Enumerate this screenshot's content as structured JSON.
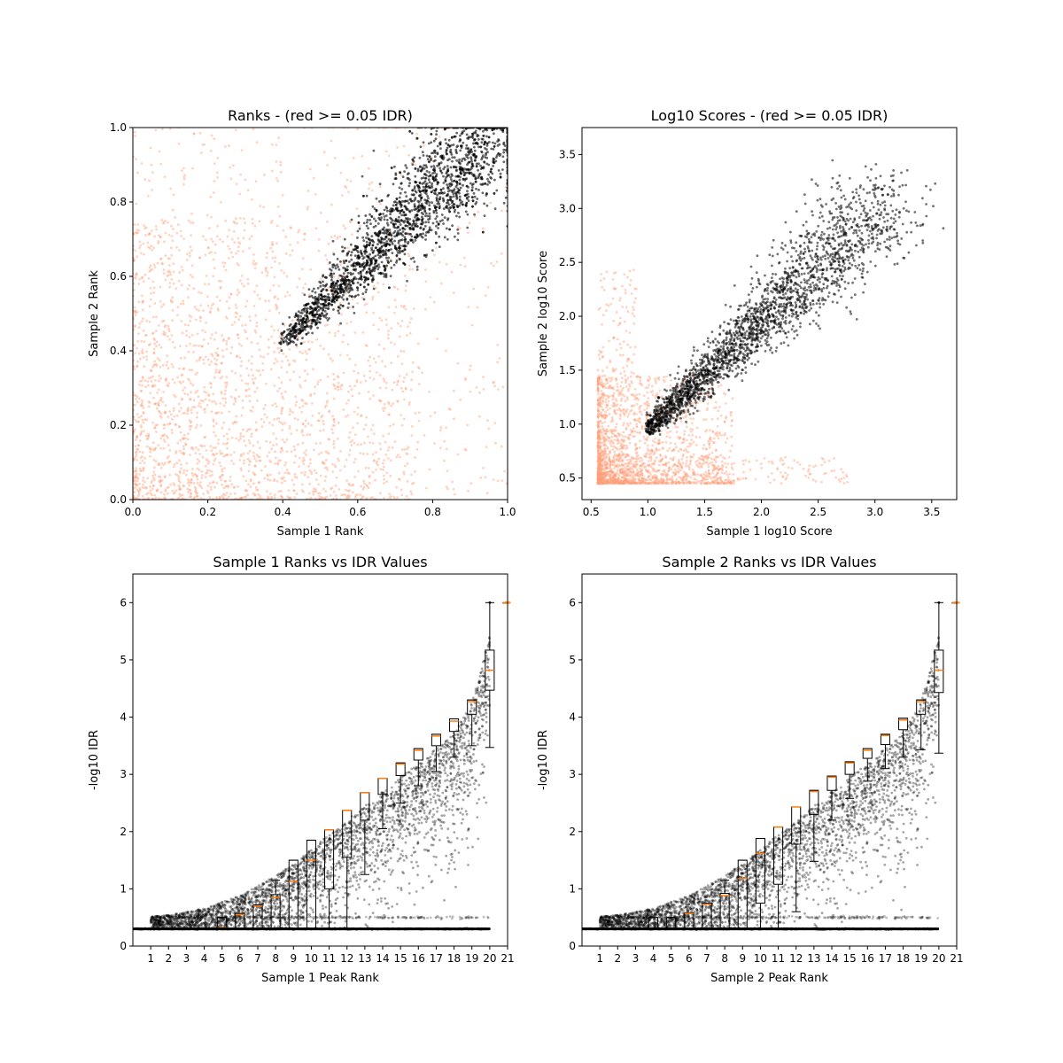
{
  "colors": {
    "pass": "#000000",
    "fail": "#ffa07a",
    "median": "#ff7f0e",
    "axes": "#000000"
  },
  "chart_data": [
    {
      "id": "ranks",
      "type": "scatter",
      "title": "Ranks - (red >= 0.05 IDR)",
      "xlabel": "Sample 1 Rank",
      "ylabel": "Sample 2 Rank",
      "xlim": [
        0,
        1
      ],
      "ylim": [
        0,
        1
      ],
      "xticks": [
        "0.0",
        "0.2",
        "0.4",
        "0.6",
        "0.8",
        "1.0"
      ],
      "yticks": [
        "0.0",
        "0.2",
        "0.4",
        "0.6",
        "0.8",
        "1.0"
      ],
      "grid": false,
      "series": [
        {
          "status": "fail",
          "color": "#ffa07a",
          "region": "lower-left",
          "description": "points with IDR >= 0.05"
        },
        {
          "status": "pass",
          "color": "#000000",
          "region": "diagonal band from (0.4, 0.39) to (1.0, 1.0)",
          "description": "points with IDR < 0.05"
        }
      ]
    },
    {
      "id": "scores",
      "type": "scatter",
      "title": "Log10 Scores - (red >= 0.05 IDR)",
      "xlabel": "Sample 1 log10 Score",
      "ylabel": "Sample 2 log10 Score",
      "xlim": [
        0.42,
        3.72
      ],
      "ylim": [
        0.3,
        3.75
      ],
      "xticks": [
        "0.5",
        "1.0",
        "1.5",
        "2.0",
        "2.5",
        "3.0",
        "3.5"
      ],
      "yticks": [
        "0.5",
        "1.0",
        "1.5",
        "2.0",
        "2.5",
        "3.0",
        "3.5"
      ],
      "grid": false,
      "series": [
        {
          "status": "fail",
          "color": "#ffa07a",
          "region": "low scores",
          "description": "points with IDR >= 0.05"
        },
        {
          "status": "pass",
          "color": "#000000",
          "region": "diagonal band from (1.0, 0.9) to (3.2, 3.5)",
          "description": "points with IDR < 0.05"
        }
      ]
    },
    {
      "id": "s1box",
      "type": "scatter",
      "overlay": "boxplot",
      "title": "Sample 1 Ranks vs IDR Values",
      "xlabel": "Sample 1 Peak Rank",
      "ylabel": "-log10 IDR",
      "xlim": [
        0,
        21
      ],
      "ylim": [
        0,
        6.5
      ],
      "xticks": [
        "1",
        "2",
        "3",
        "4",
        "5",
        "6",
        "7",
        "8",
        "9",
        "10",
        "11",
        "12",
        "13",
        "14",
        "15",
        "16",
        "17",
        "18",
        "19",
        "20",
        "21"
      ],
      "yticks": [
        "0",
        "1",
        "2",
        "3",
        "4",
        "5",
        "6"
      ],
      "boxes": [
        {
          "pos": 1,
          "q1": 0.3,
          "median": 0.3,
          "q3": 0.3,
          "whisker_low": 0.3,
          "whisker_high": 0.3
        },
        {
          "pos": 2,
          "q1": 0.3,
          "median": 0.3,
          "q3": 0.3,
          "whisker_low": 0.3,
          "whisker_high": 0.3
        },
        {
          "pos": 3,
          "q1": 0.3,
          "median": 0.3,
          "q3": 0.3,
          "whisker_low": 0.3,
          "whisker_high": 0.3
        },
        {
          "pos": 4,
          "q1": 0.3,
          "median": 0.3,
          "q3": 0.3,
          "whisker_low": 0.3,
          "whisker_high": 0.3
        },
        {
          "pos": 5,
          "q1": 0.3,
          "median": 0.32,
          "q3": 0.5,
          "whisker_low": 0.3,
          "whisker_high": 0.5
        },
        {
          "pos": 6,
          "q1": 0.3,
          "median": 0.55,
          "q3": 0.57,
          "whisker_low": 0.3,
          "whisker_high": 0.57
        },
        {
          "pos": 7,
          "q1": 0.3,
          "median": 0.7,
          "q3": 0.72,
          "whisker_low": 0.3,
          "whisker_high": 0.72
        },
        {
          "pos": 8,
          "q1": 0.3,
          "median": 0.85,
          "q3": 0.9,
          "whisker_low": 0.3,
          "whisker_high": 1.15
        },
        {
          "pos": 9,
          "q1": 0.3,
          "median": 1.13,
          "q3": 1.5,
          "whisker_low": 0.3,
          "whisker_high": 1.5
        },
        {
          "pos": 10,
          "q1": 0.3,
          "median": 1.5,
          "q3": 1.85,
          "whisker_low": 0.3,
          "whisker_high": 1.85
        },
        {
          "pos": 11,
          "q1": 1.0,
          "median": 2.03,
          "q3": 2.03,
          "whisker_low": 0.3,
          "whisker_high": 2.03
        },
        {
          "pos": 12,
          "q1": 1.55,
          "median": 2.37,
          "q3": 2.37,
          "whisker_low": 0.3,
          "whisker_high": 2.37
        },
        {
          "pos": 13,
          "q1": 2.2,
          "median": 2.68,
          "q3": 2.68,
          "whisker_low": 1.25,
          "whisker_high": 2.68
        },
        {
          "pos": 14,
          "q1": 2.65,
          "median": 2.93,
          "q3": 2.93,
          "whisker_low": 2.05,
          "whisker_high": 2.93
        },
        {
          "pos": 15,
          "q1": 2.98,
          "median": 3.18,
          "q3": 3.2,
          "whisker_low": 2.5,
          "whisker_high": 3.2
        },
        {
          "pos": 16,
          "q1": 3.25,
          "median": 3.42,
          "q3": 3.45,
          "whisker_low": 2.8,
          "whisker_high": 3.45
        },
        {
          "pos": 17,
          "q1": 3.5,
          "median": 3.67,
          "q3": 3.7,
          "whisker_low": 3.05,
          "whisker_high": 3.7
        },
        {
          "pos": 18,
          "q1": 3.75,
          "median": 3.93,
          "q3": 3.97,
          "whisker_low": 3.3,
          "whisker_high": 3.97
        },
        {
          "pos": 19,
          "q1": 4.05,
          "median": 4.27,
          "q3": 4.3,
          "whisker_low": 3.5,
          "whisker_high": 4.3
        },
        {
          "pos": 20,
          "q1": 4.47,
          "median": 4.82,
          "q3": 5.17,
          "whisker_low": 3.47,
          "whisker_high": 6.0
        },
        {
          "pos": 21,
          "q1": 6.0,
          "median": 6.0,
          "q3": 6.0,
          "whisker_low": 6.0,
          "whisker_high": 6.0
        }
      ]
    },
    {
      "id": "s2box",
      "type": "scatter",
      "overlay": "boxplot",
      "title": "Sample 2 Ranks vs IDR Values",
      "xlabel": "Sample 2 Peak Rank",
      "ylabel": "-log10 IDR",
      "xlim": [
        0,
        21
      ],
      "ylim": [
        0,
        6.5
      ],
      "xticks": [
        "1",
        "2",
        "3",
        "4",
        "5",
        "6",
        "7",
        "8",
        "9",
        "10",
        "11",
        "12",
        "13",
        "14",
        "15",
        "16",
        "17",
        "18",
        "19",
        "20",
        "21"
      ],
      "yticks": [
        "0",
        "1",
        "2",
        "3",
        "4",
        "5",
        "6"
      ],
      "boxes": [
        {
          "pos": 1,
          "q1": 0.3,
          "median": 0.3,
          "q3": 0.3,
          "whisker_low": 0.3,
          "whisker_high": 0.3
        },
        {
          "pos": 2,
          "q1": 0.3,
          "median": 0.3,
          "q3": 0.3,
          "whisker_low": 0.3,
          "whisker_high": 0.3
        },
        {
          "pos": 3,
          "q1": 0.3,
          "median": 0.3,
          "q3": 0.3,
          "whisker_low": 0.3,
          "whisker_high": 0.3
        },
        {
          "pos": 4,
          "q1": 0.3,
          "median": 0.3,
          "q3": 0.5,
          "whisker_low": 0.3,
          "whisker_high": 0.5
        },
        {
          "pos": 5,
          "q1": 0.3,
          "median": 0.3,
          "q3": 0.5,
          "whisker_low": 0.3,
          "whisker_high": 0.5
        },
        {
          "pos": 6,
          "q1": 0.3,
          "median": 0.57,
          "q3": 0.58,
          "whisker_low": 0.3,
          "whisker_high": 0.58
        },
        {
          "pos": 7,
          "q1": 0.3,
          "median": 0.73,
          "q3": 0.75,
          "whisker_low": 0.3,
          "whisker_high": 0.75
        },
        {
          "pos": 8,
          "q1": 0.3,
          "median": 0.88,
          "q3": 0.92,
          "whisker_low": 0.3,
          "whisker_high": 1.15
        },
        {
          "pos": 9,
          "q1": 0.3,
          "median": 1.18,
          "q3": 1.5,
          "whisker_low": 0.3,
          "whisker_high": 1.5
        },
        {
          "pos": 10,
          "q1": 0.75,
          "median": 1.62,
          "q3": 1.88,
          "whisker_low": 0.3,
          "whisker_high": 1.88
        },
        {
          "pos": 11,
          "q1": 1.08,
          "median": 2.08,
          "q3": 2.08,
          "whisker_low": 0.3,
          "whisker_high": 2.08
        },
        {
          "pos": 12,
          "q1": 1.78,
          "median": 2.43,
          "q3": 2.43,
          "whisker_low": 0.6,
          "whisker_high": 2.43
        },
        {
          "pos": 13,
          "q1": 2.3,
          "median": 2.7,
          "q3": 2.72,
          "whisker_low": 1.48,
          "whisker_high": 2.72
        },
        {
          "pos": 14,
          "q1": 2.72,
          "median": 2.95,
          "q3": 2.97,
          "whisker_low": 2.2,
          "whisker_high": 2.97
        },
        {
          "pos": 15,
          "q1": 3.0,
          "median": 3.2,
          "q3": 3.22,
          "whisker_low": 2.58,
          "whisker_high": 3.22
        },
        {
          "pos": 16,
          "q1": 3.28,
          "median": 3.42,
          "q3": 3.45,
          "whisker_low": 2.88,
          "whisker_high": 3.45
        },
        {
          "pos": 17,
          "q1": 3.52,
          "median": 3.68,
          "q3": 3.7,
          "whisker_low": 3.1,
          "whisker_high": 3.7
        },
        {
          "pos": 18,
          "q1": 3.78,
          "median": 3.95,
          "q3": 3.98,
          "whisker_low": 3.3,
          "whisker_high": 3.98
        },
        {
          "pos": 19,
          "q1": 4.05,
          "median": 4.27,
          "q3": 4.3,
          "whisker_low": 3.43,
          "whisker_high": 4.3
        },
        {
          "pos": 20,
          "q1": 4.43,
          "median": 4.82,
          "q3": 5.17,
          "whisker_low": 3.37,
          "whisker_high": 6.0
        },
        {
          "pos": 21,
          "q1": 6.0,
          "median": 6.0,
          "q3": 6.0,
          "whisker_low": 6.0,
          "whisker_high": 6.0
        }
      ]
    }
  ]
}
